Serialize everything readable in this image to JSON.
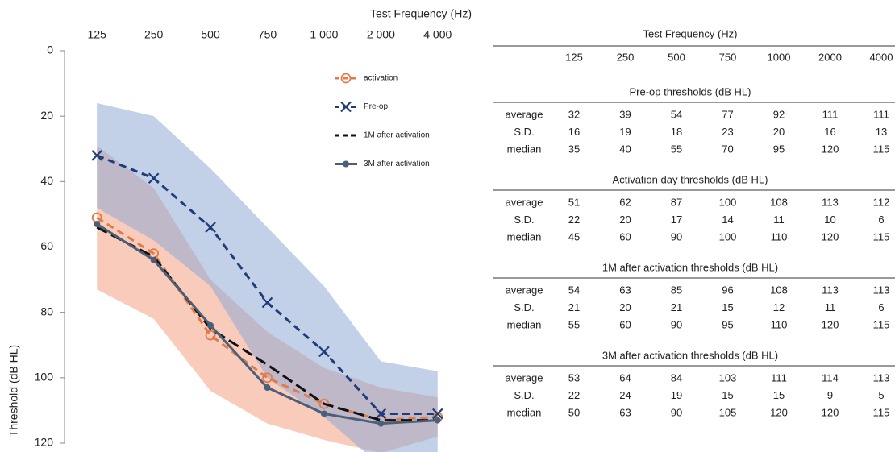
{
  "chart_data": {
    "type": "line",
    "title": "Test Frequency (Hz)",
    "y_label": "Threshold (dB HL)",
    "categories": [
      "125",
      "250",
      "500",
      "750",
      "1 000",
      "2 000",
      "4 000"
    ],
    "ylim": [
      0,
      120
    ],
    "yticks": [
      0,
      20,
      40,
      60,
      80,
      100,
      120
    ],
    "y_inverted": true,
    "grid": false,
    "legend": "top-right",
    "series": [
      {
        "name": "activation",
        "color": "#e07b4a",
        "dash": "dashed",
        "marker": "circle",
        "values": [
          51,
          62,
          87,
          100,
          108,
          113,
          112
        ],
        "errors": [
          22,
          20,
          17,
          14,
          11,
          10,
          6
        ],
        "band_color": "#f4a183"
      },
      {
        "name": "Pre-op",
        "color": "#1f3c7a",
        "dash": "dashed",
        "marker": "x",
        "values": [
          32,
          39,
          54,
          77,
          92,
          111,
          111
        ],
        "errors": [
          16,
          19,
          18,
          23,
          20,
          16,
          13
        ],
        "band_color": "#8fa9d6"
      },
      {
        "name": "1M after activation",
        "color": "#111111",
        "dash": "long-dash",
        "marker": "none",
        "values": [
          54,
          63,
          85,
          96,
          108,
          113,
          113
        ]
      },
      {
        "name": "3M after activation",
        "color": "#4b6078",
        "dash": "solid",
        "marker": "dot",
        "values": [
          53,
          64,
          84,
          103,
          111,
          114,
          113
        ]
      }
    ]
  },
  "table": {
    "title": "Test Frequency (Hz)",
    "columns": [
      125,
      250,
      500,
      750,
      1000,
      2000,
      4000
    ],
    "sections": [
      {
        "title": "Pre-op thresholds (dB HL)",
        "rows": [
          [
            "average",
            32,
            39,
            54,
            77,
            92,
            111,
            111
          ],
          [
            "S.D.",
            16,
            19,
            18,
            23,
            20,
            16,
            13
          ],
          [
            "median",
            35,
            40,
            55,
            70,
            95,
            120,
            115
          ]
        ]
      },
      {
        "title": "Activation day thresholds (dB HL)",
        "rows": [
          [
            "average",
            51,
            62,
            87,
            100,
            108,
            113,
            112
          ],
          [
            "S.D.",
            22,
            20,
            17,
            14,
            11,
            10,
            6
          ],
          [
            "median",
            45,
            60,
            90,
            100,
            110,
            120,
            115
          ]
        ]
      },
      {
        "title": "1M after activation thresholds (dB HL)",
        "rows": [
          [
            "average",
            54,
            63,
            85,
            96,
            108,
            113,
            113
          ],
          [
            "S.D.",
            21,
            20,
            21,
            15,
            12,
            11,
            6
          ],
          [
            "median",
            55,
            60,
            90,
            95,
            110,
            120,
            115
          ]
        ]
      },
      {
        "title": "3M after activation thresholds (dB HL)",
        "rows": [
          [
            "average",
            53,
            64,
            84,
            103,
            111,
            114,
            113
          ],
          [
            "S.D.",
            22,
            24,
            19,
            15,
            15,
            9,
            5
          ],
          [
            "median",
            50,
            63,
            90,
            105,
            120,
            120,
            115
          ]
        ]
      }
    ]
  }
}
